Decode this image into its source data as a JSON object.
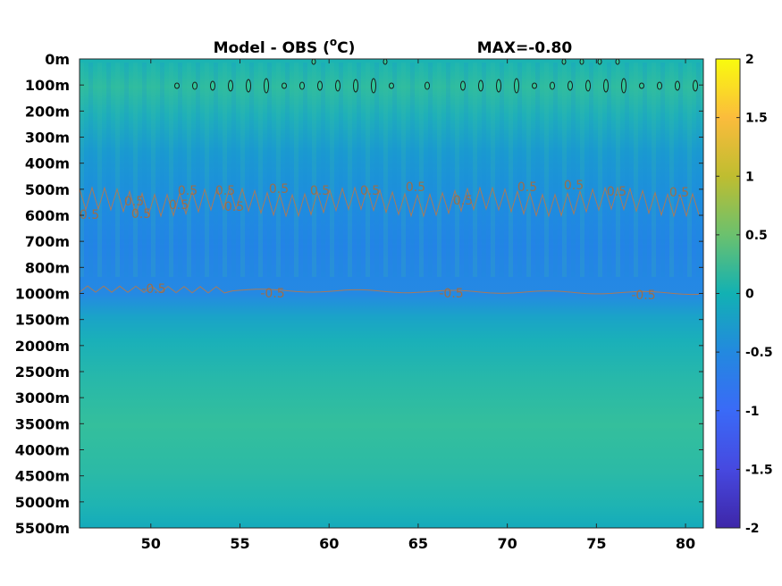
{
  "chart_data": {
    "type": "heatmap",
    "title": "Model - OBS (",
    "title_unit_sup": "o",
    "title_unit_end": "C)",
    "max_label": "MAX=-0.80",
    "xlabel": "",
    "ylabel": "",
    "xlim": [
      46,
      81
    ],
    "x_ticks": [
      50,
      55,
      60,
      65,
      70,
      75,
      80
    ],
    "y_ticks": [
      "0m",
      "100m",
      "200m",
      "300m",
      "400m",
      "500m",
      "600m",
      "700m",
      "800m",
      "1000m",
      "1500m",
      "2000m",
      "2500m",
      "3000m",
      "3500m",
      "4000m",
      "4500m",
      "5000m",
      "5500m"
    ],
    "colorbar": {
      "range": [
        -2,
        2
      ],
      "ticks": [
        "2",
        "1.5",
        "1",
        "0.5",
        "0",
        "-0.5",
        "-1",
        "-1.5",
        "-2"
      ],
      "colormap": "parula"
    },
    "depth_profile": [
      {
        "depth": "0m",
        "value": -0.05
      },
      {
        "depth": "100m",
        "value": 0.05
      },
      {
        "depth": "200m",
        "value": -0.05
      },
      {
        "depth": "300m",
        "value": -0.3
      },
      {
        "depth": "400m",
        "value": -0.45
      },
      {
        "depth": "500m",
        "value": -0.55
      },
      {
        "depth": "600m",
        "value": -0.6
      },
      {
        "depth": "700m",
        "value": -0.62
      },
      {
        "depth": "800m",
        "value": -0.6
      },
      {
        "depth": "1000m",
        "value": -0.5
      },
      {
        "depth": "1500m",
        "value": -0.2
      },
      {
        "depth": "2000m",
        "value": -0.1
      },
      {
        "depth": "2500m",
        "value": 0.0
      },
      {
        "depth": "3000m",
        "value": 0.05
      },
      {
        "depth": "3500m",
        "value": 0.03
      },
      {
        "depth": "4000m",
        "value": 0.0
      },
      {
        "depth": "4500m",
        "value": -0.05
      },
      {
        "depth": "5000m",
        "value": -0.1
      },
      {
        "depth": "5500m",
        "value": -0.15
      }
    ],
    "contour_labels": [
      "-0.5",
      "0.5"
    ],
    "grid": false,
    "legend": "none"
  }
}
